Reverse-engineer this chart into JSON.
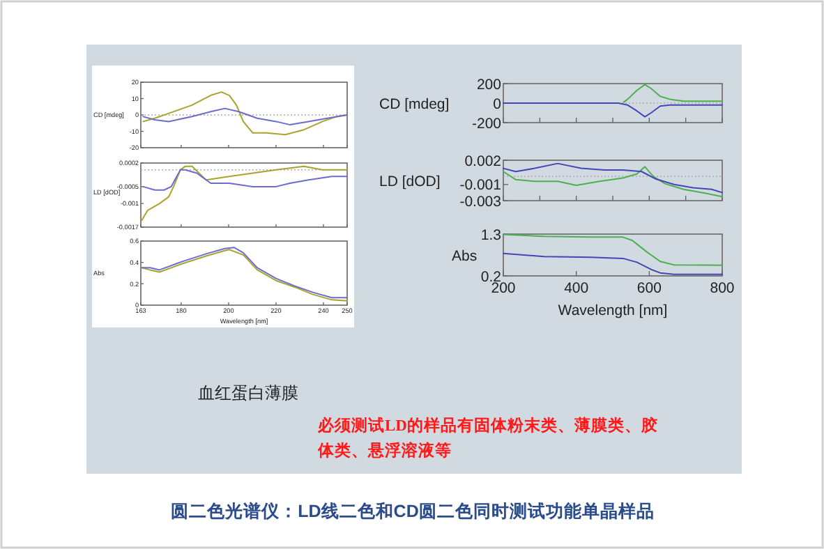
{
  "chart_data": [
    {
      "type": "line",
      "ylabel": "CD [mdeg]",
      "xlim": [
        163,
        250
      ],
      "xticks": [
        {
          "value": 163,
          "label": null
        },
        {
          "value": 180,
          "label": null
        },
        {
          "value": 200,
          "label": null
        },
        {
          "value": 220,
          "label": null
        },
        {
          "value": 240,
          "label": null
        },
        {
          "value": 250,
          "label": null
        }
      ],
      "ylim": [
        -20,
        20
      ],
      "yticks": [
        -20,
        -10,
        0,
        10,
        20
      ],
      "tick_labels": "y",
      "ref_lines": [
        {
          "axis": "y",
          "value": 0,
          "line_style": "dotted"
        }
      ],
      "series": [
        {
          "color": "#a9a22c",
          "x": [
            164,
            168.9,
            174.8,
            184.6,
            192.5,
            197,
            200.3,
            203.3,
            206.2,
            210.2,
            216,
            223.9,
            231.8,
            239.6,
            245.5,
            250
          ],
          "values": [
            -4,
            -2,
            1,
            6,
            12,
            14,
            12,
            6,
            -4,
            -11,
            -11,
            -12,
            -9,
            -4,
            -1,
            0
          ]
        },
        {
          "color": "#6b6bd0",
          "x": [
            164,
            168.9,
            174.8,
            184.6,
            192.5,
            198.4,
            204.3,
            212.1,
            220,
            225.9,
            233.7,
            241.6,
            250
          ],
          "values": [
            -1,
            -3,
            -4,
            -1,
            2,
            4,
            2,
            -2,
            -4,
            -6,
            -4,
            -2,
            0
          ]
        }
      ]
    },
    {
      "type": "line",
      "ylabel": "LD [dOD]",
      "xlim": [
        163,
        250
      ],
      "xticks": [
        {
          "value": 163,
          "label": null
        },
        {
          "value": 180,
          "label": null
        },
        {
          "value": 200,
          "label": null
        },
        {
          "value": 220,
          "label": null
        },
        {
          "value": 240,
          "label": null
        },
        {
          "value": 250,
          "label": null
        }
      ],
      "ylim": [
        -0.0017,
        0.0002
      ],
      "yticks": [
        -0.0017,
        -0.001,
        -0.0005,
        0.0002
      ],
      "tick_labels": "y",
      "ref_lines": [
        {
          "axis": "y",
          "value": 0,
          "line_style": "dotted"
        }
      ],
      "series": [
        {
          "color": "#a9a22c",
          "x": [
            163.4,
            165.9,
            170.9,
            174.8,
            176.8,
            179.7,
            181.7,
            184.6,
            190.5,
            200.3,
            210.2,
            220,
            231.8,
            239.6,
            250
          ],
          "values": [
            -0.0015,
            -0.0012,
            -0.001,
            -0.0008,
            -0.0005,
            0,
            0.0001,
            0.0001,
            -0.0003,
            -0.0002,
            -0.0001,
            0,
            0.0001,
            0,
            0
          ]
        },
        {
          "color": "#6b6bd0",
          "x": [
            164,
            168.9,
            172.8,
            175.8,
            179.7,
            181.7,
            186.6,
            192.5,
            200.3,
            210.2,
            220,
            225.9,
            233.7,
            243.5,
            250
          ],
          "values": [
            -0.0005,
            -0.0006,
            -0.0006,
            -0.0005,
            0,
            0,
            -0.0001,
            -0.0004,
            -0.0004,
            -0.0005,
            -0.0005,
            -0.0004,
            -0.0003,
            -0.0002,
            -0.0002
          ]
        }
      ]
    },
    {
      "type": "line",
      "ylabel": "Abs",
      "xlabel": "Wavelength [nm]",
      "xlim": [
        163,
        250
      ],
      "xticks": [
        163,
        180,
        200,
        220,
        240,
        250
      ],
      "ylim": [
        0,
        0.6
      ],
      "yticks": [
        0,
        0.2,
        0.4,
        0.6
      ],
      "series": [
        {
          "color": "#a9a22c",
          "x": [
            163.4,
            166.9,
            170.9,
            180.7,
            190.5,
            198.4,
            200.3,
            206.2,
            212.1,
            220,
            227.8,
            235.6,
            243.5,
            250
          ],
          "values": [
            0.35,
            0.33,
            0.31,
            0.39,
            0.46,
            0.51,
            0.52,
            0.47,
            0.33,
            0.23,
            0.17,
            0.1,
            0.05,
            0.04
          ]
        },
        {
          "color": "#6b6bd0",
          "x": [
            163.4,
            166.9,
            170.9,
            180.7,
            190.5,
            198.4,
            202.3,
            206.2,
            212.1,
            220,
            227.8,
            235.6,
            243.5,
            250
          ],
          "values": [
            0.35,
            0.35,
            0.33,
            0.41,
            0.48,
            0.53,
            0.54,
            0.49,
            0.35,
            0.25,
            0.18,
            0.12,
            0.07,
            0.07
          ]
        }
      ]
    },
    {
      "type": "line",
      "ylabel": "CD [mdeg]",
      "xlim": [
        200,
        800
      ],
      "xticks": [
        {
          "value": 200,
          "label": null
        },
        {
          "value": 300,
          "label": null
        },
        {
          "value": 400,
          "label": null
        },
        {
          "value": 500,
          "label": null
        },
        {
          "value": 600,
          "label": null
        },
        {
          "value": 700,
          "label": null
        },
        {
          "value": 800,
          "label": null
        }
      ],
      "ylim": [
        -200,
        200
      ],
      "yticks": [
        -200,
        0,
        200
      ],
      "tick_labels": "y",
      "ref_lines": [
        {
          "axis": "y",
          "value": 0,
          "line_style": "dotted"
        }
      ],
      "series": [
        {
          "color": "#4caf50",
          "x": [
            530,
            541,
            566,
            588,
            605,
            630,
            656,
            694,
            800
          ],
          "values": [
            10,
            40,
            130,
            190,
            150,
            70,
            40,
            20,
            20
          ]
        },
        {
          "color": "#4545b5",
          "x": [
            200,
            311,
            439,
            515,
            541,
            566,
            588,
            605,
            630,
            656,
            800
          ],
          "values": [
            0,
            0,
            0,
            0,
            -20,
            -80,
            -140,
            -100,
            -30,
            -20,
            -20
          ]
        }
      ]
    },
    {
      "type": "line",
      "ylabel": "LD [dOD]",
      "xlim": [
        200,
        800
      ],
      "xticks": [
        {
          "value": 200,
          "label": null
        },
        {
          "value": 300,
          "label": null
        },
        {
          "value": 400,
          "label": null
        },
        {
          "value": 500,
          "label": null
        },
        {
          "value": 600,
          "label": null
        },
        {
          "value": 700,
          "label": null
        },
        {
          "value": 800,
          "label": null
        }
      ],
      "ylim": [
        -0.003,
        0.002
      ],
      "yticks": [
        -0.003,
        -0.001,
        0.002
      ],
      "tick_labels": "y",
      "ref_lines": [
        {
          "axis": "y",
          "value": 0,
          "line_style": "dotted"
        }
      ],
      "series": [
        {
          "color": "#4caf50",
          "x": [
            200,
            234,
            286,
            349,
            400,
            464,
            528,
            566,
            588,
            611,
            643,
            694,
            745,
            800
          ],
          "values": [
            0.0006,
            -0.0004,
            -0.0006,
            -0.0006,
            -0.0011,
            -0.0006,
            -0.0002,
            0.0003,
            0.0012,
            0.0,
            -0.0009,
            -0.0016,
            -0.002,
            -0.0025
          ]
        },
        {
          "color": "#4545b5",
          "x": [
            200,
            234,
            286,
            349,
            413,
            477,
            528,
            579,
            617,
            668,
            720,
            771,
            800
          ],
          "values": [
            0.001,
            0.0006,
            0.001,
            0.0016,
            0.001,
            0.0008,
            0.0008,
            0.0006,
            -0.0003,
            -0.001,
            -0.0014,
            -0.0016,
            -0.002
          ]
        }
      ]
    },
    {
      "type": "line",
      "ylabel": "Abs",
      "xlabel": "Wavelength [nm]",
      "xlim": [
        200,
        800
      ],
      "xticks": [
        200,
        400,
        600,
        800
      ],
      "ylim": [
        0.2,
        1.3
      ],
      "yticks": [
        0.2,
        1.3
      ],
      "series": [
        {
          "color": "#4caf50",
          "x": [
            200,
            311,
            439,
            528,
            554,
            592,
            630,
            668,
            800
          ],
          "values": [
            1.29,
            1.24,
            1.22,
            1.22,
            1.13,
            0.84,
            0.58,
            0.49,
            0.48
          ]
        },
        {
          "color": "#4545b5",
          "x": [
            200,
            311,
            439,
            528,
            566,
            605,
            630,
            668,
            800
          ],
          "values": [
            0.79,
            0.71,
            0.69,
            0.66,
            0.56,
            0.37,
            0.28,
            0.24,
            0.24
          ]
        }
      ]
    },
    {
      "type": "other",
      "title": "圆二色光谱仪：LD线二色和CD圆二色同时测试功能单晶样品",
      "annotations": [
        "血红蛋白薄膜",
        "必须测试LD的样品有固体粉末类、薄膜类、胶体类、悬浮溶液等"
      ]
    }
  ]
}
